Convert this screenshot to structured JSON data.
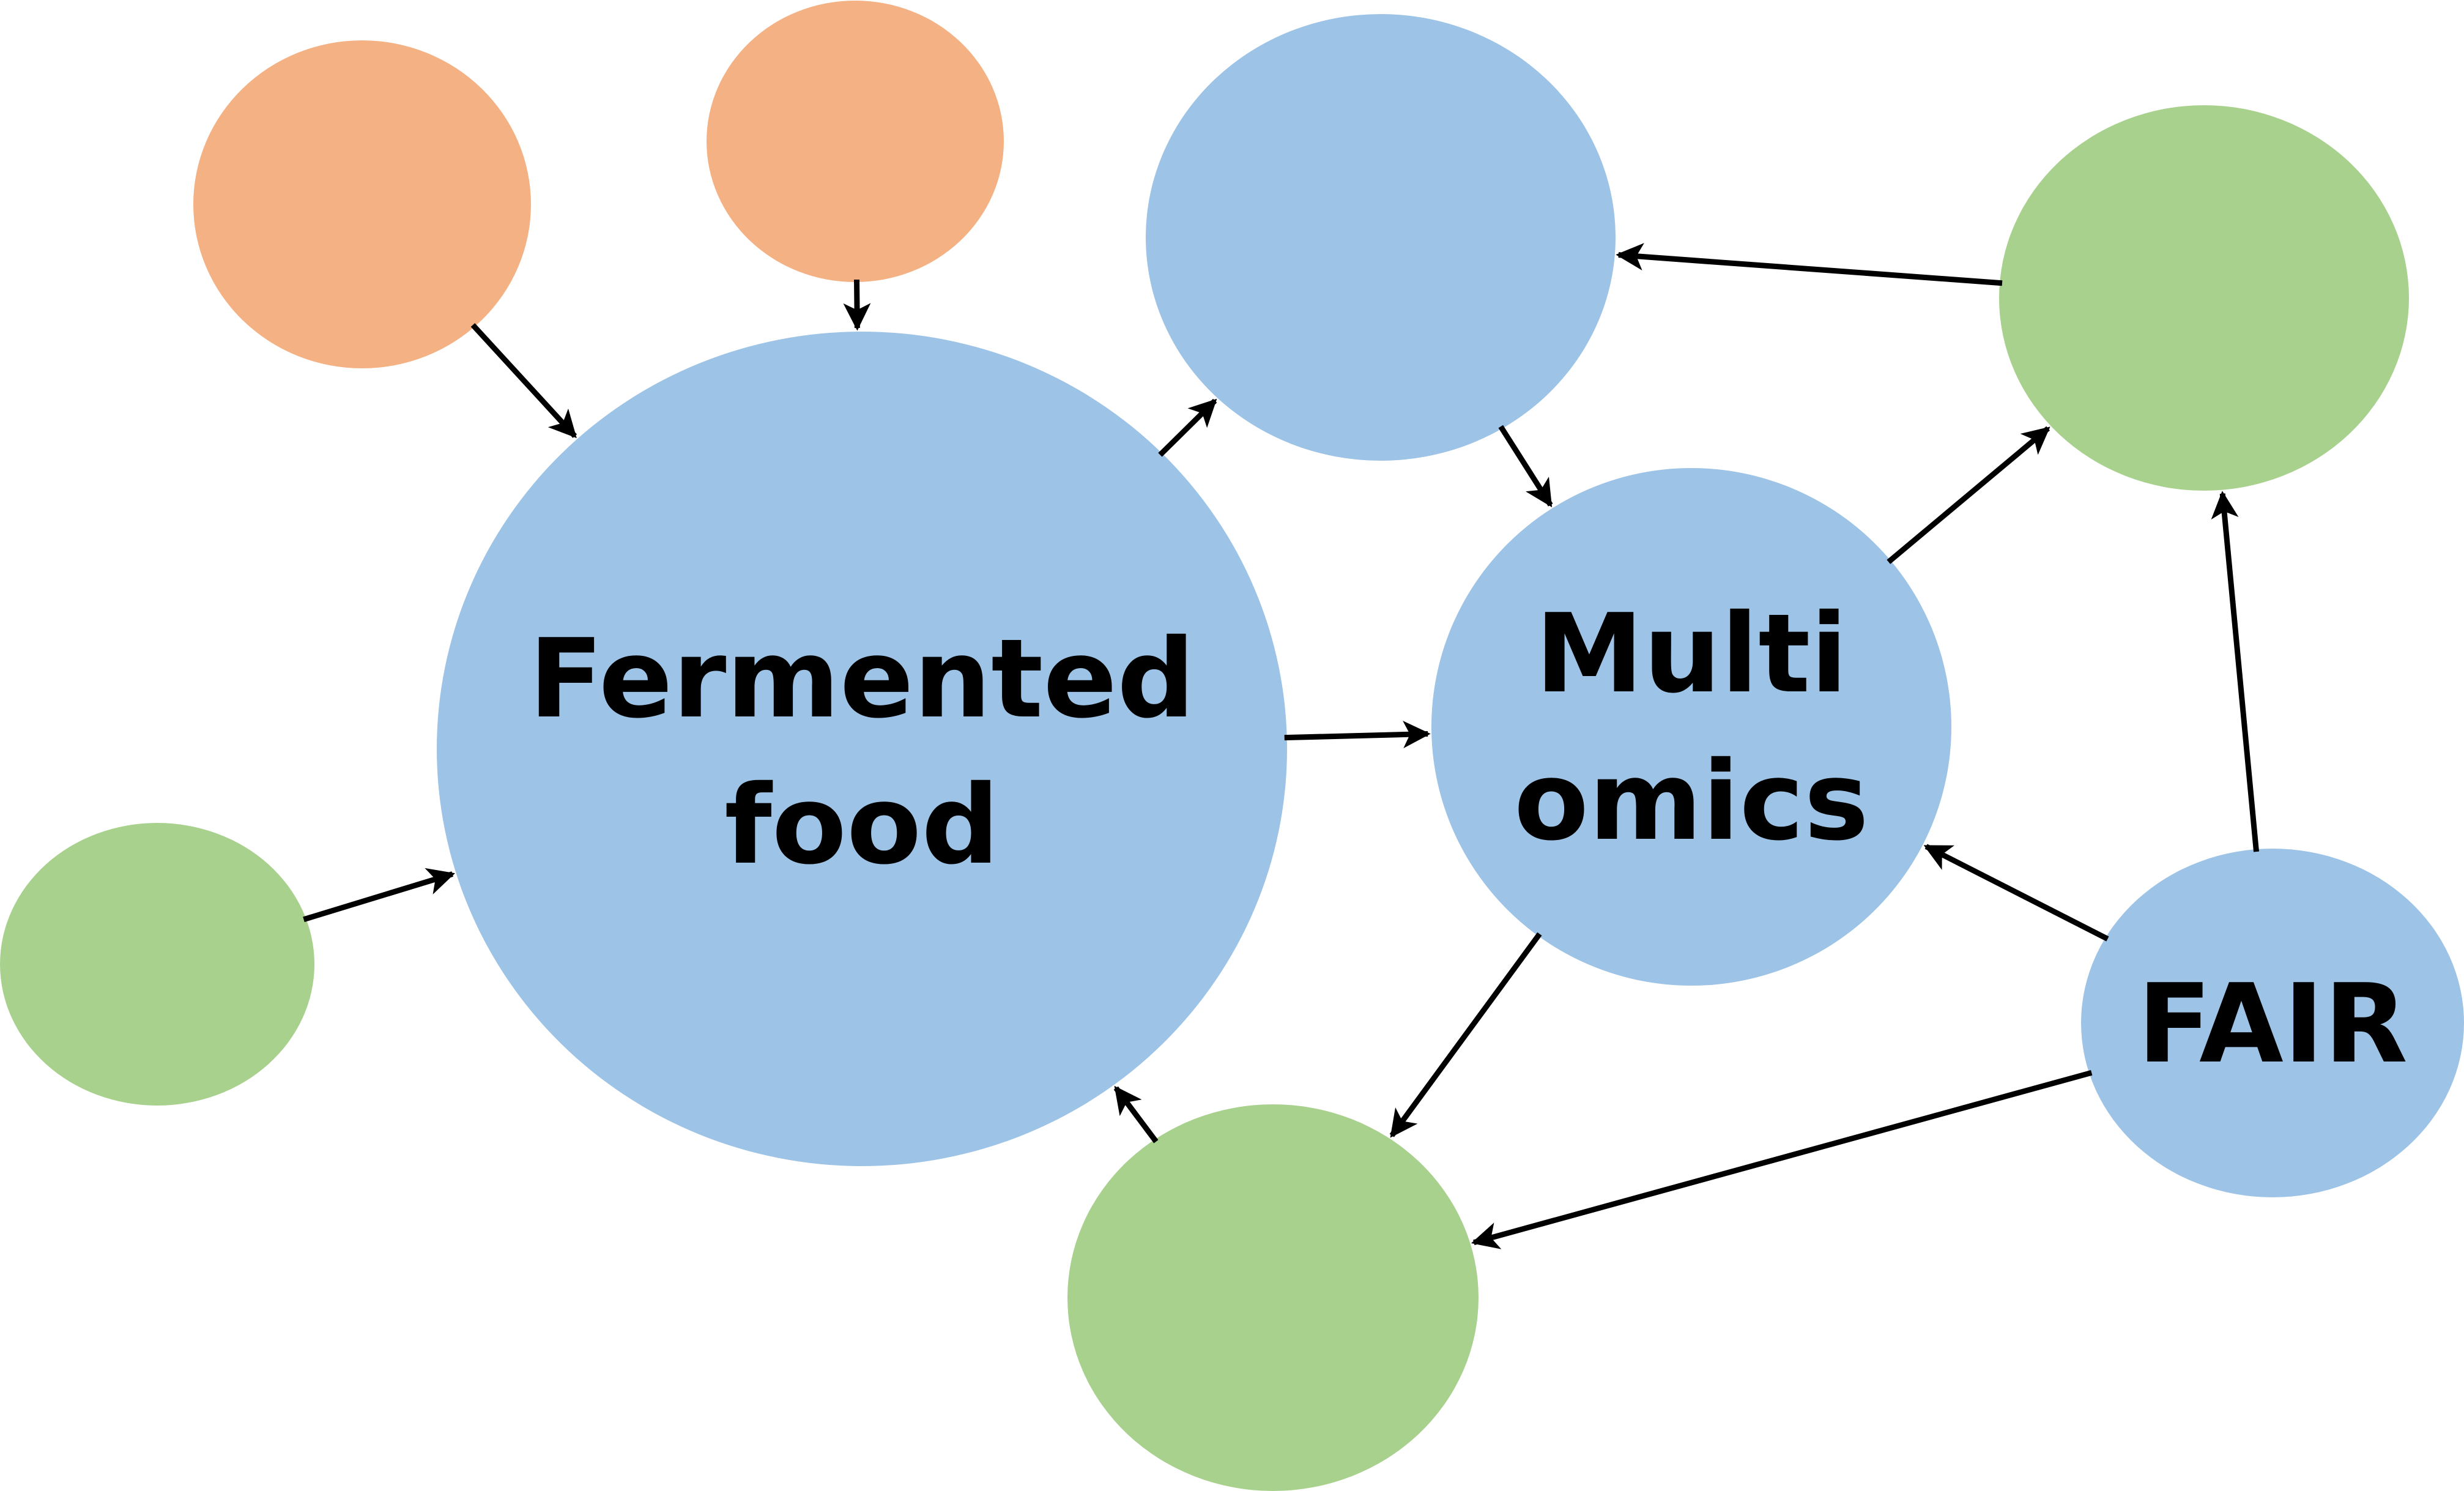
{
  "colors": {
    "blue": "#9dc3e6",
    "orange": "#f4b183",
    "green": "#a9d18e",
    "arrow": "#000000",
    "text": "#000000"
  },
  "nodes": {
    "fermented_food": {
      "label_line1": "Fermented",
      "label_line2": "food",
      "color": "blue"
    },
    "multi_omics": {
      "label_line1": "Multi",
      "label_line2": "omics",
      "color": "blue"
    },
    "fair": {
      "label": "FAIR",
      "color": "blue"
    },
    "top_blue": {
      "label": "",
      "color": "blue"
    },
    "orange_left": {
      "label": "",
      "color": "orange"
    },
    "orange_top": {
      "label": "",
      "color": "orange"
    },
    "green_left": {
      "label": "",
      "color": "green"
    },
    "green_top_right": {
      "label": "",
      "color": "green"
    },
    "green_bottom": {
      "label": "",
      "color": "green"
    }
  },
  "edges": [
    {
      "from": "orange_left",
      "to": "fermented_food"
    },
    {
      "from": "orange_top",
      "to": "fermented_food"
    },
    {
      "from": "green_left",
      "to": "fermented_food"
    },
    {
      "from": "fermented_food",
      "to": "top_blue"
    },
    {
      "from": "fermented_food",
      "to": "multi_omics"
    },
    {
      "from": "top_blue",
      "to": "multi_omics"
    },
    {
      "from": "green_top_right",
      "to": "top_blue"
    },
    {
      "from": "multi_omics",
      "to": "green_top_right"
    },
    {
      "from": "fair",
      "to": "green_top_right"
    },
    {
      "from": "fair",
      "to": "multi_omics"
    },
    {
      "from": "multi_omics",
      "to": "green_bottom"
    },
    {
      "from": "fair",
      "to": "green_bottom"
    },
    {
      "from": "green_bottom",
      "to": "fermented_food"
    }
  ]
}
